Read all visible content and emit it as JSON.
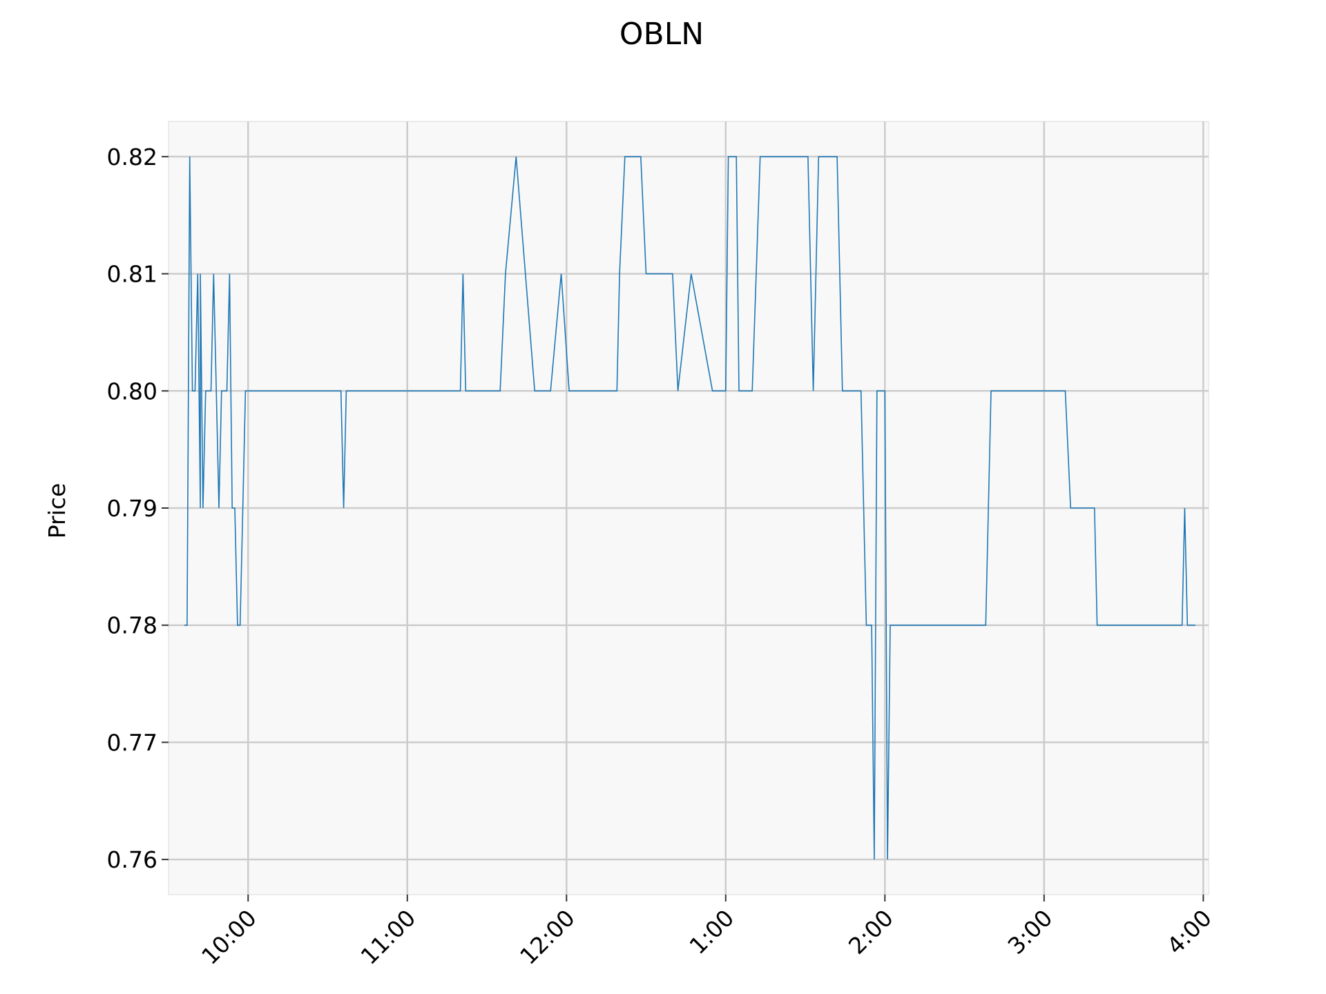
{
  "chart_data": {
    "type": "line",
    "title": "OBLN",
    "xlabel": "",
    "ylabel": "Price",
    "grid": true,
    "legend": "none",
    "colors": {
      "line": "#1f77b4",
      "plot_bg": "#f8f8f8",
      "grid": "#cccccc"
    },
    "x_unit": "time of day",
    "xlim": [
      "9:30",
      "4:02"
    ],
    "ylim": [
      0.757,
      0.823
    ],
    "x_ticks": [
      {
        "value": "10:00",
        "label": "10:00"
      },
      {
        "value": "11:00",
        "label": "11:00"
      },
      {
        "value": "12:00",
        "label": "12:00"
      },
      {
        "value": "1:00",
        "label": "1:00"
      },
      {
        "value": "2:00",
        "label": "2:00"
      },
      {
        "value": "3:00",
        "label": "3:00"
      },
      {
        "value": "4:00",
        "label": "4:00"
      }
    ],
    "y_ticks": [
      0.76,
      0.77,
      0.78,
      0.79,
      0.8,
      0.81,
      0.82
    ],
    "y_tick_labels": [
      "0.76",
      "0.77",
      "0.78",
      "0.79",
      "0.80",
      "0.81",
      "0.82"
    ],
    "series": [
      {
        "x": [
          "9:36",
          "9:37",
          "9:38",
          "9:39",
          "9:40",
          "9:41",
          "9:42",
          "9:42",
          "9:43",
          "9:44",
          "9:45",
          "9:46",
          "9:47",
          "9:48",
          "9:49",
          "9:50",
          "9:52",
          "9:53",
          "9:54",
          "9:55",
          "9:56",
          "9:56",
          "9:57",
          "9:58",
          "9:59",
          "10:00",
          "10:01",
          "10:03",
          "10:05",
          "10:10",
          "10:15",
          "10:20",
          "10:25",
          "10:30",
          "10:35",
          "10:36",
          "10:37",
          "10:38",
          "10:40",
          "10:50",
          "11:00",
          "11:10",
          "11:20",
          "11:21",
          "11:22",
          "11:25",
          "11:30",
          "11:35",
          "11:37",
          "11:41",
          "11:48",
          "11:52",
          "11:54",
          "11:58",
          "12:01",
          "12:03",
          "12:05",
          "12:10",
          "12:15",
          "12:19",
          "12:20",
          "12:22",
          "12:25",
          "12:28",
          "12:30",
          "12:35",
          "12:40",
          "12:42",
          "12:47",
          "12:55",
          "12:57",
          "13:00",
          "13:01",
          "13:02",
          "13:04",
          "13:05",
          "13:08",
          "13:10",
          "13:13",
          "13:17",
          "13:20",
          "13:30",
          "13:31",
          "13:33",
          "13:35",
          "13:40",
          "13:42",
          "13:44",
          "13:50",
          "13:51",
          "13:53",
          "13:54",
          "13:55",
          "13:56",
          "13:57",
          "14:00",
          "14:01",
          "14:02",
          "14:10",
          "14:20",
          "14:30",
          "14:37",
          "14:38",
          "14:40",
          "14:50",
          "15:00",
          "15:04",
          "15:08",
          "15:10",
          "15:12",
          "15:19",
          "15:20",
          "15:30",
          "15:40",
          "15:50",
          "15:52",
          "15:53",
          "15:54",
          "15:57"
        ],
        "y": [
          0.78,
          0.78,
          0.82,
          0.8,
          0.8,
          0.81,
          0.79,
          0.81,
          0.79,
          0.8,
          0.8,
          0.8,
          0.81,
          0.8,
          0.79,
          0.8,
          0.8,
          0.81,
          0.79,
          0.79,
          0.78,
          0.78,
          0.78,
          0.79,
          0.8,
          0.8,
          0.8,
          0.8,
          0.8,
          0.8,
          0.8,
          0.8,
          0.8,
          0.8,
          0.8,
          0.79,
          0.8,
          0.8,
          0.8,
          0.8,
          0.8,
          0.8,
          0.8,
          0.81,
          0.8,
          0.8,
          0.8,
          0.8,
          0.81,
          0.82,
          0.8,
          0.8,
          0.8,
          0.81,
          0.8,
          0.8,
          0.8,
          0.8,
          0.8,
          0.8,
          0.81,
          0.82,
          0.82,
          0.82,
          0.81,
          0.81,
          0.81,
          0.8,
          0.81,
          0.8,
          0.8,
          0.8,
          0.82,
          0.82,
          0.82,
          0.8,
          0.8,
          0.8,
          0.82,
          0.82,
          0.82,
          0.82,
          0.82,
          0.8,
          0.82,
          0.82,
          0.82,
          0.8,
          0.8,
          0.8,
          0.78,
          0.78,
          0.78,
          0.76,
          0.8,
          0.8,
          0.76,
          0.78,
          0.78,
          0.78,
          0.78,
          0.78,
          0.78,
          0.8,
          0.8,
          0.8,
          0.8,
          0.8,
          0.79,
          0.79,
          0.79,
          0.78,
          0.78,
          0.78,
          0.78,
          0.78,
          0.79,
          0.78,
          0.78
        ]
      }
    ]
  }
}
